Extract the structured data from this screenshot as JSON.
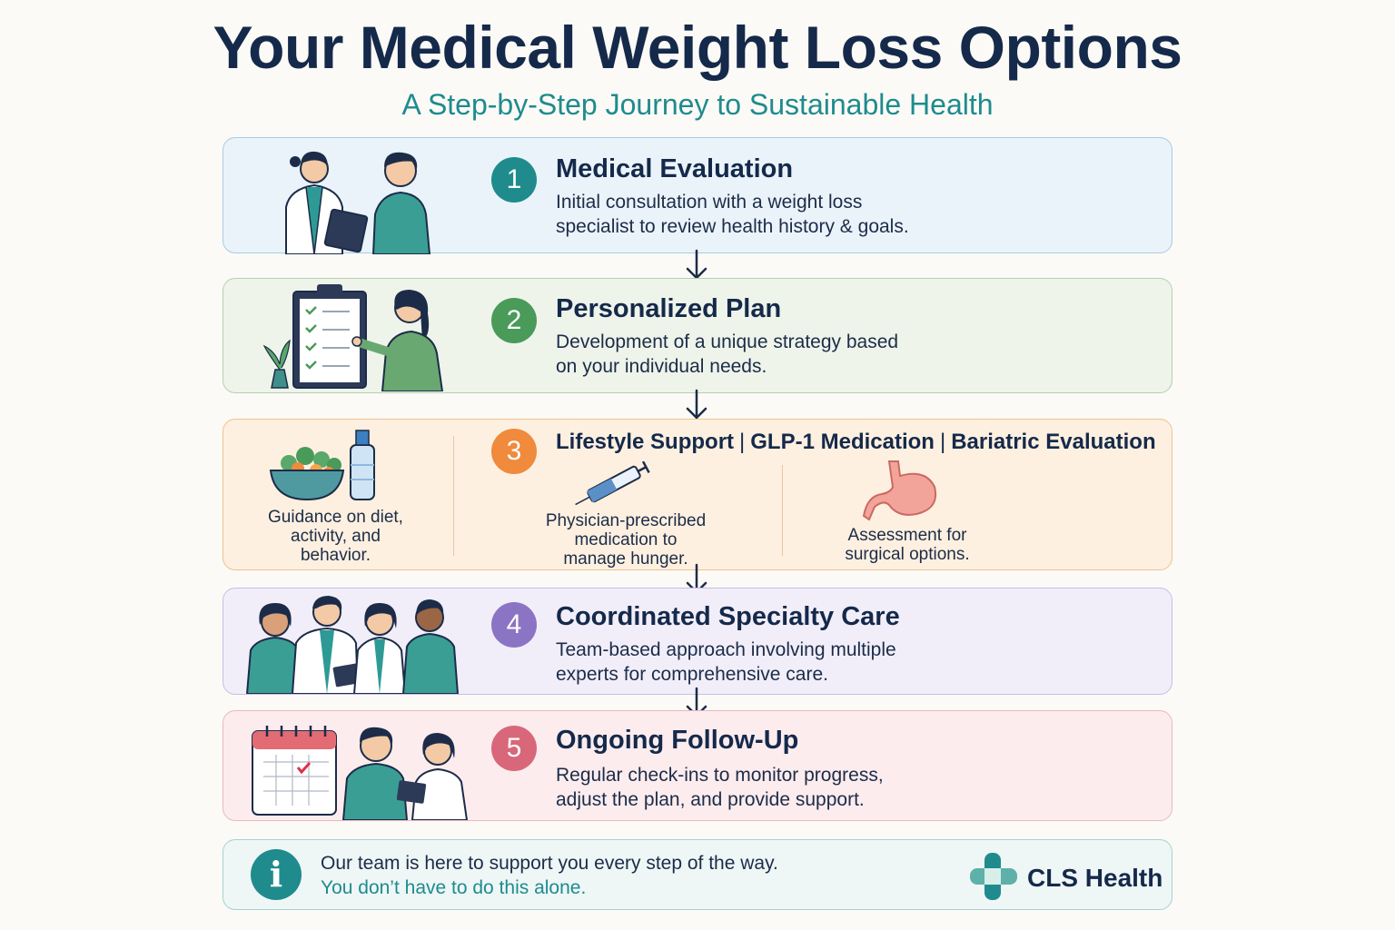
{
  "header": {
    "title": "Your Medical Weight Loss Options",
    "subtitle": "A Step-by-Step Journey to Sustainable Health"
  },
  "steps": [
    {
      "number": "1",
      "title": "Medical Evaluation",
      "desc_line1": "Initial consultation with a weight loss",
      "desc_line2": "specialist to review health history & goals."
    },
    {
      "number": "2",
      "title": "Personalized Plan",
      "desc_line1": "Development of a unique strategy based",
      "desc_line2": "on your individual needs."
    },
    {
      "number": "3",
      "title_a": "Lifestyle Support",
      "title_sep": "|",
      "title_b": "GLP-1 Medication",
      "title_c": "Bariatric Evaluation",
      "col_a": [
        "Guidance on diet,",
        "activity, and",
        "behavior."
      ],
      "col_b": [
        "Physician-prescribed",
        "medication to",
        "manage hunger."
      ],
      "col_c": [
        "Assessment for",
        "surgical options."
      ]
    },
    {
      "number": "4",
      "title": "Coordinated Specialty Care",
      "desc_line1": "Team-based approach involving multiple",
      "desc_line2": "experts for comprehensive care."
    },
    {
      "number": "5",
      "title": "Ongoing Follow-Up",
      "desc_line1": "Regular check-ins to monitor progress,",
      "desc_line2": "adjust the plan, and provide support."
    }
  ],
  "footer": {
    "icon": "i",
    "line1": "Our team is here to support you every step of the way.",
    "line2": "You don’t have to do this alone.",
    "brand": "CLS Health"
  },
  "colors": {
    "step1": "#1f8b8d",
    "step2": "#4a9a5a",
    "step3": "#f08a3c",
    "step4": "#8c74c4",
    "step5": "#d9677a",
    "accent": "#1f8b8d",
    "navy": "#15294a"
  }
}
